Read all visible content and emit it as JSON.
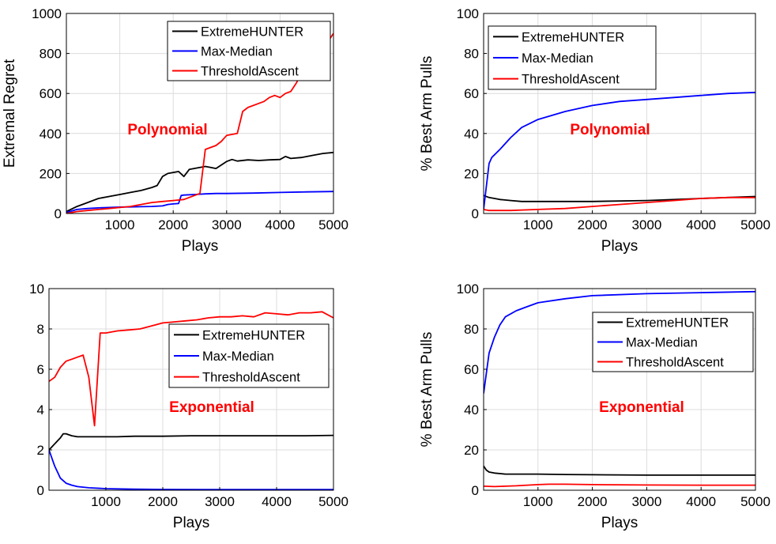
{
  "legend_labels": [
    "ExtremeHUNTER",
    "Max-Median",
    "ThresholdAscent"
  ],
  "colors": {
    "ExtremeHUNTER": "#000000",
    "Max-Median": "#0000ff",
    "ThresholdAscent": "#ff0000",
    "annotation": "#ff0000",
    "grid": "#dcdcdc"
  },
  "chart_data": [
    {
      "type": "line",
      "title": "",
      "xlabel": "Plays",
      "ylabel": "Extremal Regret",
      "xlim": [
        0,
        5000
      ],
      "ylim": [
        0,
        1000
      ],
      "xticks": [
        1000,
        2000,
        3000,
        4000,
        5000
      ],
      "yticks": [
        0,
        200,
        400,
        600,
        800,
        1000
      ],
      "grid": true,
      "legend_position": "top-right",
      "annotation": "Polynomial",
      "series": [
        {
          "name": "ExtremeHUNTER",
          "x": [
            0,
            200,
            400,
            600,
            800,
            1000,
            1200,
            1400,
            1600,
            1700,
            1800,
            1900,
            2000,
            2100,
            2200,
            2300,
            2500,
            2600,
            2700,
            2800,
            3000,
            3100,
            3200,
            3400,
            3600,
            3800,
            4000,
            4100,
            4200,
            4400,
            4600,
            4800,
            5000
          ],
          "y": [
            10,
            35,
            55,
            75,
            85,
            95,
            105,
            115,
            130,
            140,
            185,
            200,
            205,
            210,
            185,
            220,
            230,
            235,
            230,
            225,
            260,
            270,
            262,
            268,
            265,
            268,
            270,
            285,
            275,
            280,
            290,
            300,
            305
          ]
        },
        {
          "name": "Max-Median",
          "x": [
            0,
            200,
            400,
            600,
            800,
            1000,
            1200,
            1400,
            1600,
            1800,
            1900,
            2000,
            2100,
            2150,
            2200,
            2400,
            2600,
            2800,
            3000,
            3500,
            4000,
            4500,
            5000
          ],
          "y": [
            5,
            20,
            25,
            28,
            30,
            32,
            33,
            34,
            35,
            38,
            45,
            48,
            50,
            90,
            92,
            95,
            98,
            100,
            100,
            102,
            105,
            108,
            110
          ]
        },
        {
          "name": "ThresholdAscent",
          "x": [
            0,
            200,
            400,
            600,
            800,
            1000,
            1200,
            1400,
            1600,
            1800,
            2000,
            2200,
            2400,
            2500,
            2600,
            2700,
            2800,
            2900,
            3000,
            3200,
            3300,
            3400,
            3600,
            3700,
            3800,
            3900,
            4000,
            4100,
            4200,
            4300,
            4400,
            4600,
            4800,
            5000
          ],
          "y": [
            0,
            10,
            15,
            20,
            25,
            30,
            35,
            45,
            55,
            60,
            65,
            70,
            90,
            100,
            320,
            330,
            340,
            360,
            390,
            400,
            510,
            530,
            550,
            560,
            580,
            590,
            580,
            600,
            610,
            650,
            700,
            760,
            820,
            900
          ]
        }
      ]
    },
    {
      "type": "line",
      "title": "",
      "xlabel": "Plays",
      "ylabel": "% Best Arm Pulls",
      "xlim": [
        0,
        5000
      ],
      "ylim": [
        0,
        100
      ],
      "xticks": [
        1000,
        2000,
        3000,
        4000,
        5000
      ],
      "yticks": [
        0,
        20,
        40,
        60,
        80,
        100
      ],
      "grid": true,
      "legend_position": "top-left",
      "annotation": "Polynomial",
      "series": [
        {
          "name": "ExtremeHUNTER",
          "x": [
            0,
            100,
            200,
            300,
            500,
            700,
            1000,
            1500,
            2000,
            3000,
            4000,
            5000
          ],
          "y": [
            9,
            8,
            7.5,
            7,
            6.5,
            6,
            6,
            6,
            6,
            6.5,
            7.5,
            8.5
          ]
        },
        {
          "name": "Max-Median",
          "x": [
            0,
            100,
            150,
            300,
            500,
            700,
            1000,
            1500,
            2000,
            2500,
            3000,
            3500,
            4000,
            4500,
            5000
          ],
          "y": [
            2,
            25,
            28,
            32,
            38,
            43,
            47,
            51,
            54,
            56,
            57,
            58,
            59,
            60,
            60.5
          ]
        },
        {
          "name": "ThresholdAscent",
          "x": [
            0,
            100,
            300,
            500,
            1000,
            1500,
            2000,
            2500,
            3000,
            3500,
            4000,
            4500,
            5000
          ],
          "y": [
            2,
            1.5,
            1.5,
            1.5,
            2,
            2.5,
            3.5,
            4.5,
            5.5,
            6.5,
            7.5,
            8,
            8
          ]
        }
      ]
    },
    {
      "type": "line",
      "title": "",
      "xlabel": "Plays",
      "ylabel": "Extremal Regret",
      "xlim": [
        0,
        5000
      ],
      "ylim": [
        0,
        10
      ],
      "xticks": [
        1000,
        2000,
        3000,
        4000,
        5000
      ],
      "yticks": [
        0,
        2,
        4,
        6,
        8,
        10
      ],
      "grid": true,
      "legend_position": "right",
      "annotation": "Exponential",
      "series": [
        {
          "name": "ExtremeHUNTER",
          "x": [
            0,
            100,
            200,
            250,
            300,
            400,
            500,
            600,
            800,
            1000,
            1200,
            1500,
            2000,
            2500,
            3000,
            3500,
            4000,
            4500,
            5000
          ],
          "y": [
            2,
            2.3,
            2.6,
            2.8,
            2.8,
            2.7,
            2.65,
            2.65,
            2.65,
            2.65,
            2.65,
            2.68,
            2.68,
            2.7,
            2.7,
            2.7,
            2.7,
            2.7,
            2.72
          ]
        },
        {
          "name": "Max-Median",
          "x": [
            0,
            100,
            200,
            300,
            400,
            500,
            700,
            1000,
            1500,
            2000,
            3000,
            4000,
            5000
          ],
          "y": [
            2,
            1.2,
            0.6,
            0.35,
            0.25,
            0.18,
            0.12,
            0.08,
            0.05,
            0.04,
            0.03,
            0.03,
            0.03
          ]
        },
        {
          "name": "ThresholdAscent",
          "x": [
            0,
            100,
            200,
            300,
            400,
            500,
            600,
            700,
            800,
            900,
            1000,
            1200,
            1400,
            1600,
            1800,
            2000,
            2200,
            2400,
            2600,
            2800,
            3000,
            3200,
            3400,
            3600,
            3800,
            4000,
            4200,
            4400,
            4600,
            4800,
            5000
          ],
          "y": [
            5.4,
            5.6,
            6.1,
            6.4,
            6.5,
            6.6,
            6.7,
            5.6,
            3.2,
            7.8,
            7.8,
            7.9,
            7.95,
            8,
            8.15,
            8.3,
            8.35,
            8.4,
            8.45,
            8.55,
            8.6,
            8.6,
            8.65,
            8.6,
            8.8,
            8.75,
            8.7,
            8.8,
            8.8,
            8.85,
            8.55
          ]
        }
      ]
    },
    {
      "type": "line",
      "title": "",
      "xlabel": "Plays",
      "ylabel": "% Best Arm Pulls",
      "xlim": [
        0,
        5000
      ],
      "ylim": [
        0,
        100
      ],
      "xticks": [
        1000,
        2000,
        3000,
        4000,
        5000
      ],
      "yticks": [
        0,
        20,
        40,
        60,
        80,
        100
      ],
      "grid": true,
      "legend_position": "right",
      "annotation": "Exponential",
      "series": [
        {
          "name": "ExtremeHUNTER",
          "x": [
            0,
            50,
            100,
            200,
            400,
            700,
            1000,
            1500,
            2000,
            3000,
            4000,
            5000
          ],
          "y": [
            12,
            10,
            9,
            8.5,
            8,
            8,
            8,
            7.8,
            7.7,
            7.5,
            7.5,
            7.5
          ]
        },
        {
          "name": "Max-Median",
          "x": [
            0,
            100,
            200,
            300,
            400,
            600,
            800,
            1000,
            1500,
            2000,
            3000,
            4000,
            5000
          ],
          "y": [
            48,
            68,
            76,
            82,
            86,
            89,
            91,
            93,
            95,
            96.5,
            97.5,
            98,
            98.5
          ]
        },
        {
          "name": "ThresholdAscent",
          "x": [
            0,
            200,
            400,
            600,
            800,
            1000,
            1200,
            1500,
            2000,
            3000,
            4000,
            5000
          ],
          "y": [
            2,
            1.8,
            2,
            2.2,
            2.5,
            2.8,
            3,
            3,
            2.8,
            2.6,
            2.5,
            2.5
          ]
        }
      ]
    }
  ]
}
